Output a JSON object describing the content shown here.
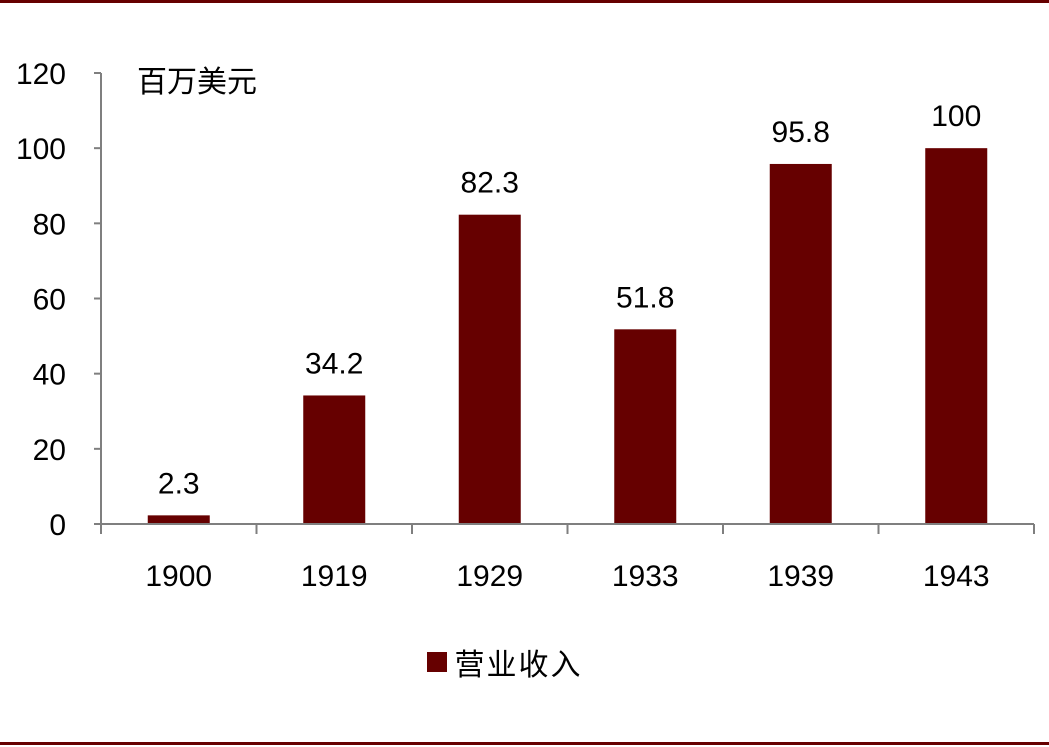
{
  "colors": {
    "bar": "#660000",
    "frame": "#660000",
    "axis": "#7f7f7f"
  },
  "chart_data": {
    "type": "bar",
    "unit_label": "百万美元",
    "categories": [
      "1900",
      "1919",
      "1929",
      "1933",
      "1939",
      "1943"
    ],
    "series": [
      {
        "name": "营业收入",
        "values": [
          2.3,
          34.2,
          82.3,
          51.8,
          95.8,
          100
        ],
        "data_labels": [
          "2.3",
          "34.2",
          "82.3",
          "51.8",
          "95.8",
          "100"
        ]
      }
    ],
    "ylim": [
      0,
      120
    ],
    "yticks": [
      0,
      20,
      40,
      60,
      80,
      100,
      120
    ],
    "grid": false,
    "legend_position": "bottom-center"
  }
}
